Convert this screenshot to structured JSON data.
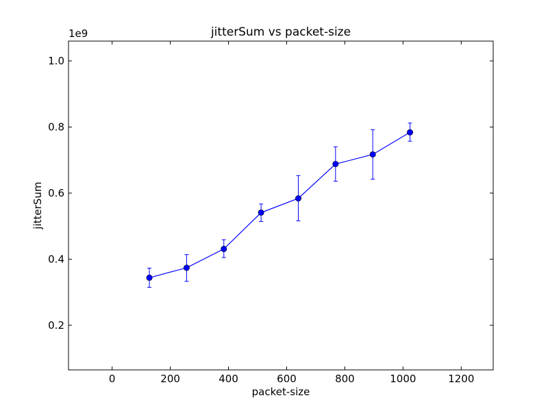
{
  "chart_data": {
    "type": "line",
    "title": "jitterSum vs packet-size",
    "xlabel": "packet-size",
    "ylabel": "jitterSum",
    "y_offset_label": "1e9",
    "xlim": [
      -150,
      1310
    ],
    "ylim": [
      0.065,
      1.06
    ],
    "x_ticks": [
      0,
      200,
      400,
      600,
      800,
      1000,
      1200
    ],
    "x_tick_labels": [
      "0",
      "200",
      "400",
      "600",
      "800",
      "1000",
      "1200"
    ],
    "y_ticks": [
      0.2,
      0.4,
      0.6,
      0.8,
      1.0
    ],
    "y_tick_labels": [
      "0.2",
      "0.4",
      "0.6",
      "0.8",
      "1.0"
    ],
    "grid": false,
    "legend": "none",
    "series_color": "#0000ff",
    "series": [
      {
        "x": [
          128,
          256,
          384,
          512,
          640,
          768,
          896,
          1024
        ],
        "y": [
          0.344,
          0.374,
          0.431,
          0.541,
          0.584,
          0.688,
          0.717,
          0.784
        ],
        "y_err_low": [
          0.315,
          0.333,
          0.405,
          0.514,
          0.516,
          0.636,
          0.642,
          0.757
        ],
        "y_err_high": [
          0.373,
          0.414,
          0.459,
          0.567,
          0.653,
          0.74,
          0.792,
          0.812
        ]
      }
    ]
  }
}
